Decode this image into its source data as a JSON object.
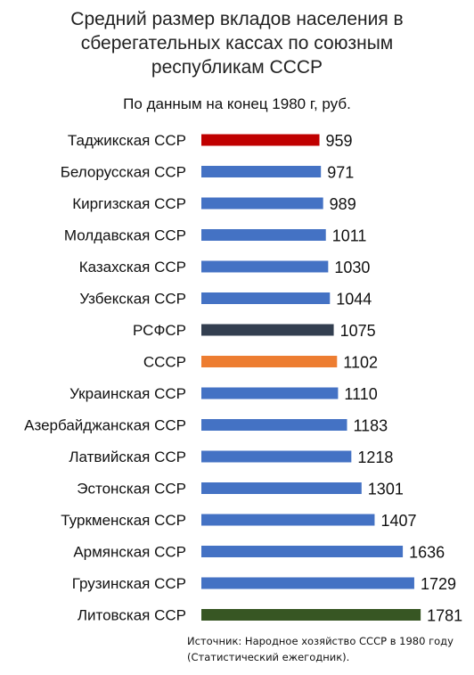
{
  "chart_data": {
    "type": "bar",
    "orientation": "horizontal",
    "title": "Средний размер вкладов населения в сберегательных кассах по союзным республикам СССР",
    "title_lines": [
      "Средний размер вкладов населения в",
      "сберегательных кассах по союзным",
      "республикам СССР"
    ],
    "subtitle": "По данным на конец 1980 г, руб.",
    "categories": [
      "Таджикская ССР",
      "Белорусская ССР",
      "Киргизская ССР",
      "Молдавская ССР",
      "Казахская ССР",
      "Узбекская ССР",
      "РСФСР",
      "СССР",
      "Украинская ССР",
      "Азербайджанская ССР",
      "Латвийская ССР",
      "Эстонская ССР",
      "Туркменская ССР",
      "Армянская ССР",
      "Грузинская ССР",
      "Литовская ССР"
    ],
    "values": [
      959,
      971,
      989,
      1011,
      1030,
      1044,
      1075,
      1102,
      1110,
      1183,
      1218,
      1301,
      1407,
      1636,
      1729,
      1781
    ],
    "value_labels": [
      "959",
      "971",
      "989",
      "1011",
      "1030",
      "1044",
      "1075",
      "1102",
      "1110",
      "1183",
      "1218",
      "1301",
      "1407",
      "1636",
      "1729",
      "1781"
    ],
    "colors": [
      "#c00000",
      "#4472c4",
      "#4472c4",
      "#4472c4",
      "#4472c4",
      "#4472c4",
      "#333f50",
      "#ed7d31",
      "#4472c4",
      "#4472c4",
      "#4472c4",
      "#4472c4",
      "#4472c4",
      "#4472c4",
      "#4472c4",
      "#375623"
    ],
    "xlabel": "",
    "ylabel": "",
    "grid": false,
    "legend": "none"
  },
  "source": {
    "line1": "Источник: Народное хозяйство СССР в 1980 году",
    "line2": "(Статистический ежегодник)."
  }
}
